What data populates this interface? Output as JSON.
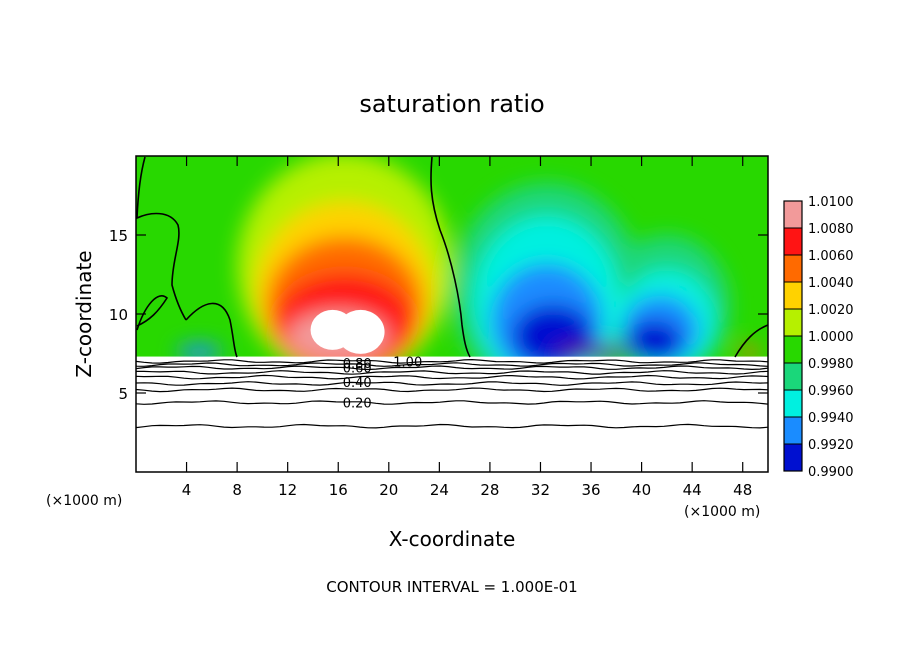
{
  "chart_data": {
    "type": "heatmap",
    "title": "saturation ratio",
    "xlabel": "X-coordinate",
    "ylabel": "Z-coordinate",
    "x_unit_left": "(×1000 m)",
    "x_unit_right": "(×1000 m)",
    "xlim": [
      0,
      50
    ],
    "ylim": [
      0,
      20
    ],
    "x_ticks": [
      4,
      8,
      12,
      16,
      20,
      24,
      28,
      32,
      36,
      40,
      44,
      48
    ],
    "y_ticks": [
      5,
      10,
      15
    ],
    "colorbar": {
      "levels": [
        "1.0100",
        "1.0080",
        "1.0060",
        "1.0040",
        "1.0020",
        "1.0000",
        "0.9980",
        "0.9960",
        "0.9940",
        "0.9920",
        "0.9900"
      ],
      "colors": [
        "#f29a9a",
        "#ff1414",
        "#ff6a00",
        "#ffd200",
        "#b6f000",
        "#28d800",
        "#1ad77a",
        "#00f0e0",
        "#1a8cff",
        "#0010d0",
        "#5a1a8c"
      ]
    },
    "colored_region_zmin": 7.3,
    "contour_labels": [
      {
        "text": "1.00",
        "x": 21.5,
        "z": 7.0
      },
      {
        "text": "0.80",
        "x": 17.5,
        "z": 6.9
      },
      {
        "text": "0.60",
        "x": 17.5,
        "z": 6.6
      },
      {
        "text": "0.40",
        "x": 17.5,
        "z": 5.7
      },
      {
        "text": "0.20",
        "x": 17.5,
        "z": 4.4
      }
    ],
    "lower_contour_levels_z": [
      7.0,
      6.8,
      6.6,
      6.3,
      6.0,
      5.6,
      5.2,
      4.4,
      2.9
    ],
    "contour_interval_note": "CONTOUR INTERVAL = 1.000E-01",
    "field_features": [
      {
        "kind": "max",
        "x": 16.5,
        "z": 9.5,
        "value": 1.01
      },
      {
        "kind": "min",
        "x": 33.5,
        "z": 8.5,
        "value": 0.99
      },
      {
        "kind": "min",
        "x": 42.5,
        "z": 8.2,
        "value": 0.99
      }
    ]
  }
}
